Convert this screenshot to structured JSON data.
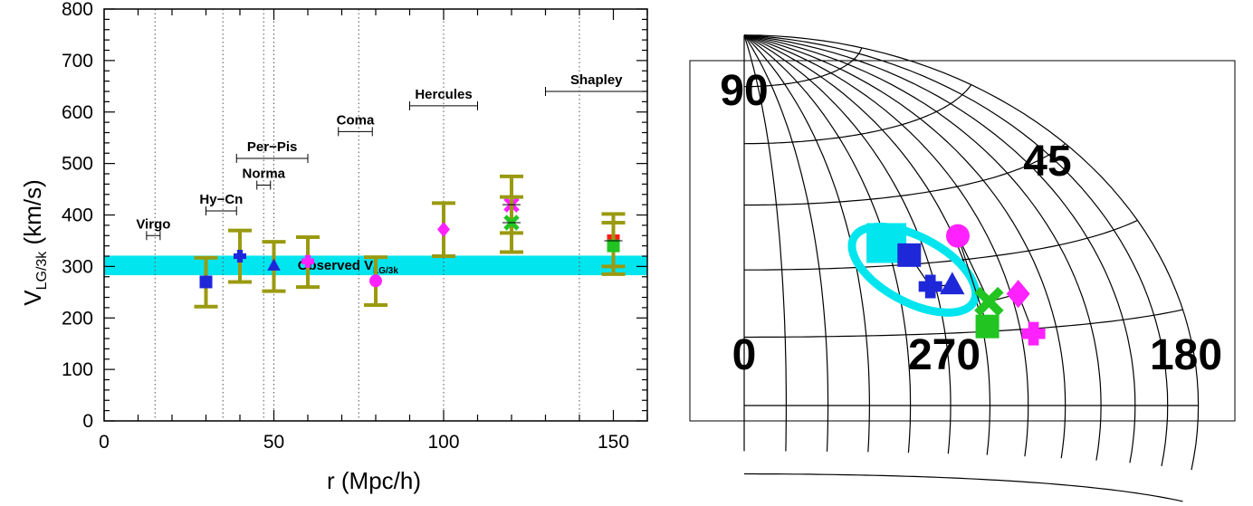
{
  "chart_data": [
    {
      "type": "scatter",
      "title": "",
      "xlabel": "r (Mpc/h)",
      "ylabel_main": "V",
      "ylabel_sub": "LG/3k",
      "ylabel_unit": " (km/s)",
      "xlim": [
        0,
        160
      ],
      "ylim": [
        0,
        800
      ],
      "x_ticks": [
        "0",
        "50",
        "100",
        "150"
      ],
      "x_tick_values": [
        0,
        50,
        100,
        150
      ],
      "y_ticks": [
        "0",
        "100",
        "200",
        "300",
        "400",
        "500",
        "600",
        "700",
        "800"
      ],
      "y_tick_values": [
        0,
        100,
        200,
        300,
        400,
        500,
        600,
        700,
        800
      ],
      "band": {
        "label_main": "Observed V",
        "label_sub": "LG/3k",
        "y_low": 283,
        "y_high": 321,
        "color": "#00e5ee"
      },
      "vertical_lines": [
        15,
        35,
        47,
        50,
        75,
        100,
        140
      ],
      "clusters": [
        {
          "label": "Virgo",
          "x_low": 12.5,
          "x_high": 16.5,
          "y": 360
        },
        {
          "label": "Hy−Cn",
          "x_low": 30,
          "x_high": 39,
          "y": 408
        },
        {
          "label": "Norma",
          "x_low": 45,
          "x_high": 49,
          "y": 458
        },
        {
          "label": "Per−Pis",
          "x_low": 39,
          "x_high": 60,
          "y": 510
        },
        {
          "label": "Coma",
          "x_low": 69,
          "x_high": 79,
          "y": 562
        },
        {
          "label": "Hercules",
          "x_low": 90,
          "x_high": 110,
          "y": 612
        },
        {
          "label": "Shapley",
          "x_low": 130,
          "x_high": 160,
          "y": 640
        }
      ],
      "error_bar_color": "#9a9a10",
      "points": [
        {
          "x": 30,
          "y": 270,
          "y_low": 222,
          "y_high": 317,
          "marker": "square",
          "color": "#1e28d8"
        },
        {
          "x": 40,
          "y": 320,
          "y_low": 270,
          "y_high": 370,
          "marker": "plus",
          "color": "#1e28d8"
        },
        {
          "x": 50,
          "y": 302,
          "y_low": 252,
          "y_high": 348,
          "marker": "triangle",
          "color": "#1e28d8"
        },
        {
          "x": 60,
          "y": 310,
          "y_low": 260,
          "y_high": 357,
          "marker": "plus",
          "color": "#ff22ff"
        },
        {
          "x": 80,
          "y": 272,
          "y_low": 225,
          "y_high": 318,
          "marker": "circle",
          "color": "#ff22ff"
        },
        {
          "x": 100,
          "y": 372,
          "y_low": 320,
          "y_high": 423,
          "marker": "diamond",
          "color": "#ff22ff"
        },
        {
          "x": 120,
          "y": 420,
          "y_low": 365,
          "y_high": 475,
          "marker": "cross",
          "color": "#ff22ff"
        },
        {
          "x": 120,
          "y": 385,
          "y_low": 328,
          "y_high": 435,
          "marker": "cross",
          "color": "#22c422"
        },
        {
          "x": 150,
          "y": 350,
          "y_low": 300,
          "y_high": 402,
          "marker": "square",
          "color": "#ff1a1a"
        },
        {
          "x": 150,
          "y": 340,
          "y_low": 285,
          "y_high": 385,
          "marker": "square",
          "color": "#22c422"
        }
      ]
    },
    {
      "type": "scatter",
      "title": "",
      "labels": {
        "lat_90": "90",
        "lat_45": "45",
        "lon_0": "0",
        "lon_270": "270",
        "lon_180": "180"
      },
      "ellipse_color": "#00e5ee",
      "markers": [
        {
          "marker": "square",
          "color": "#00e5ee",
          "lon": 300,
          "lat": 35
        },
        {
          "marker": "square",
          "color": "#1e28d8",
          "lon": 292,
          "lat": 32
        },
        {
          "marker": "plus",
          "color": "#1e28d8",
          "lon": 287,
          "lat": 25
        },
        {
          "marker": "triangle",
          "color": "#1e28d8",
          "lon": 278,
          "lat": 25
        },
        {
          "marker": "circle",
          "color": "#ff22ff",
          "lon": 268,
          "lat": 35
        },
        {
          "marker": "cross",
          "color": "#22c422",
          "lon": 265,
          "lat": 21
        },
        {
          "marker": "square",
          "color": "#22c422",
          "lon": 268,
          "lat": 16
        },
        {
          "marker": "diamond",
          "color": "#ff22ff",
          "lon": 252,
          "lat": 22
        },
        {
          "marker": "plus",
          "color": "#ff22ff",
          "lon": 250,
          "lat": 14
        }
      ]
    }
  ]
}
